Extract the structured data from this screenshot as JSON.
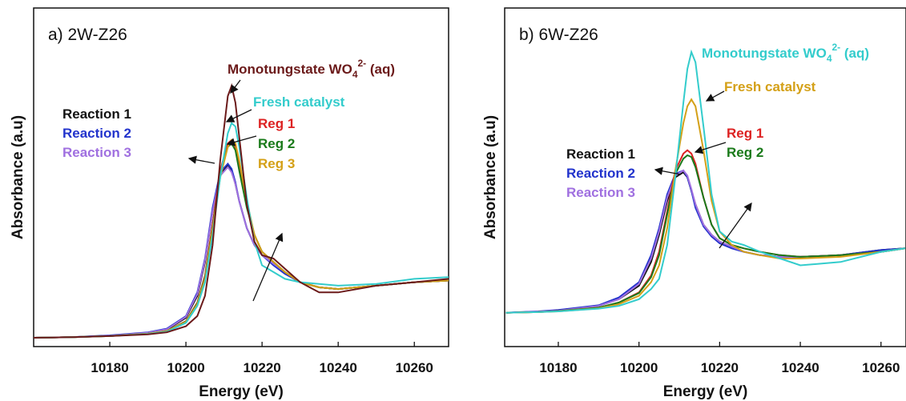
{
  "chart_data": [
    {
      "type": "line",
      "title": "a) 2W-Z26",
      "xlabel": "Energy (eV)",
      "ylabel": "Absorbance (a.u)",
      "xlim": [
        10160,
        10269
      ],
      "xticks": [
        10180,
        10200,
        10220,
        10240,
        10260
      ],
      "ylim": [
        0,
        1
      ],
      "x": [
        10160,
        10170,
        10180,
        10190,
        10195,
        10200,
        10203,
        10205,
        10207,
        10209,
        10211,
        10212,
        10213,
        10214,
        10216,
        10218,
        10220,
        10223,
        10226,
        10230,
        10235,
        10240,
        10250,
        10260,
        10269
      ],
      "series": [
        {
          "name": "Reaction 1",
          "color": "#111111",
          "values": [
            0.026,
            0.028,
            0.032,
            0.04,
            0.05,
            0.085,
            0.15,
            0.25,
            0.4,
            0.51,
            0.535,
            0.52,
            0.48,
            0.43,
            0.35,
            0.3,
            0.27,
            0.245,
            0.22,
            0.19,
            0.175,
            0.17,
            0.18,
            0.19,
            0.195
          ]
        },
        {
          "name": "Reaction 2",
          "color": "#2233cc",
          "values": [
            0.026,
            0.028,
            0.033,
            0.042,
            0.053,
            0.09,
            0.16,
            0.26,
            0.41,
            0.515,
            0.54,
            0.525,
            0.485,
            0.43,
            0.35,
            0.3,
            0.27,
            0.24,
            0.215,
            0.19,
            0.175,
            0.17,
            0.18,
            0.19,
            0.195
          ]
        },
        {
          "name": "Reaction 3",
          "color": "#a070e0",
          "values": [
            0.026,
            0.028,
            0.032,
            0.041,
            0.051,
            0.088,
            0.155,
            0.255,
            0.4,
            0.505,
            0.53,
            0.515,
            0.48,
            0.43,
            0.35,
            0.3,
            0.27,
            0.245,
            0.22,
            0.19,
            0.175,
            0.17,
            0.18,
            0.19,
            0.195
          ]
        },
        {
          "name": "Reg 1",
          "color": "#dd2222",
          "values": [
            0.026,
            0.028,
            0.031,
            0.038,
            0.046,
            0.075,
            0.13,
            0.21,
            0.36,
            0.52,
            0.6,
            0.61,
            0.59,
            0.53,
            0.42,
            0.33,
            0.28,
            0.25,
            0.22,
            0.19,
            0.175,
            0.17,
            0.18,
            0.19,
            0.195
          ]
        },
        {
          "name": "Reg 2",
          "color": "#1a7a1a",
          "values": [
            0.026,
            0.028,
            0.031,
            0.038,
            0.046,
            0.074,
            0.128,
            0.205,
            0.35,
            0.51,
            0.59,
            0.6,
            0.58,
            0.52,
            0.41,
            0.33,
            0.28,
            0.25,
            0.22,
            0.19,
            0.175,
            0.17,
            0.18,
            0.19,
            0.195
          ]
        },
        {
          "name": "Reg 3",
          "color": "#d4a017",
          "values": [
            0.026,
            0.028,
            0.031,
            0.038,
            0.046,
            0.073,
            0.125,
            0.2,
            0.345,
            0.5,
            0.59,
            0.61,
            0.6,
            0.55,
            0.43,
            0.33,
            0.28,
            0.25,
            0.22,
            0.19,
            0.175,
            0.17,
            0.18,
            0.19,
            0.195
          ]
        },
        {
          "name": "Fresh catalyst",
          "color": "#33cccc",
          "values": [
            0.026,
            0.028,
            0.031,
            0.037,
            0.044,
            0.07,
            0.12,
            0.19,
            0.33,
            0.5,
            0.63,
            0.66,
            0.65,
            0.59,
            0.44,
            0.31,
            0.24,
            0.22,
            0.2,
            0.19,
            0.185,
            0.18,
            0.185,
            0.2,
            0.205
          ]
        },
        {
          "name": "Monotungstate WO",
          "name_sub": "4",
          "name_sup": "2-",
          "name_after": " (aq)",
          "color": "#6b1a1a",
          "values": [
            0.026,
            0.028,
            0.031,
            0.036,
            0.042,
            0.06,
            0.09,
            0.15,
            0.3,
            0.55,
            0.74,
            0.77,
            0.72,
            0.62,
            0.42,
            0.31,
            0.27,
            0.26,
            0.23,
            0.19,
            0.16,
            0.16,
            0.18,
            0.19,
            0.2
          ]
        }
      ]
    },
    {
      "type": "line",
      "title": "b) 6W-Z26",
      "xlabel": "Energy (eV)",
      "ylabel": "Absorbance (a.u)",
      "xlim": [
        10166.7,
        10266.2
      ],
      "xticks": [
        10180,
        10200,
        10220,
        10240,
        10260
      ],
      "ylim": [
        0,
        1
      ],
      "x": [
        10167,
        10175,
        10180,
        10190,
        10195,
        10200,
        10203,
        10205,
        10207,
        10209,
        10211,
        10212,
        10213,
        10214,
        10216,
        10218,
        10220,
        10223,
        10226,
        10230,
        10235,
        10240,
        10250,
        10260,
        10266
      ],
      "series": [
        {
          "name": "Reaction 1",
          "color": "#111111",
          "values": [
            0.1,
            0.103,
            0.106,
            0.12,
            0.14,
            0.18,
            0.25,
            0.33,
            0.43,
            0.5,
            0.515,
            0.5,
            0.46,
            0.42,
            0.36,
            0.33,
            0.31,
            0.295,
            0.28,
            0.27,
            0.265,
            0.265,
            0.27,
            0.285,
            0.29
          ]
        },
        {
          "name": "Reaction 2",
          "color": "#2233cc",
          "values": [
            0.1,
            0.104,
            0.108,
            0.122,
            0.145,
            0.19,
            0.27,
            0.35,
            0.45,
            0.51,
            0.52,
            0.5,
            0.46,
            0.41,
            0.355,
            0.325,
            0.305,
            0.29,
            0.28,
            0.27,
            0.265,
            0.265,
            0.27,
            0.285,
            0.29
          ]
        },
        {
          "name": "Reaction 3",
          "color": "#a070e0",
          "values": [
            0.1,
            0.103,
            0.106,
            0.12,
            0.14,
            0.185,
            0.26,
            0.34,
            0.44,
            0.505,
            0.52,
            0.505,
            0.465,
            0.42,
            0.36,
            0.33,
            0.31,
            0.295,
            0.28,
            0.27,
            0.265,
            0.265,
            0.27,
            0.28,
            0.29
          ]
        },
        {
          "name": "Reg 1",
          "color": "#dd2222",
          "values": [
            0.1,
            0.102,
            0.105,
            0.115,
            0.13,
            0.16,
            0.21,
            0.28,
            0.4,
            0.52,
            0.57,
            0.58,
            0.57,
            0.54,
            0.44,
            0.36,
            0.32,
            0.3,
            0.29,
            0.28,
            0.27,
            0.265,
            0.27,
            0.28,
            0.29
          ]
        },
        {
          "name": "Reg 2",
          "color": "#1a7a1a",
          "values": [
            0.1,
            0.102,
            0.105,
            0.115,
            0.13,
            0.158,
            0.205,
            0.27,
            0.39,
            0.51,
            0.555,
            0.565,
            0.56,
            0.53,
            0.44,
            0.36,
            0.32,
            0.3,
            0.29,
            0.28,
            0.27,
            0.265,
            0.27,
            0.28,
            0.29
          ]
        },
        {
          "name": "Fresh catalyst",
          "color": "#d4a017",
          "values": [
            0.1,
            0.102,
            0.104,
            0.113,
            0.125,
            0.15,
            0.19,
            0.24,
            0.35,
            0.52,
            0.66,
            0.71,
            0.73,
            0.71,
            0.58,
            0.43,
            0.34,
            0.3,
            0.28,
            0.27,
            0.26,
            0.26,
            0.265,
            0.28,
            0.29
          ]
        },
        {
          "name": "Monotungstate WO",
          "name_sub": "4",
          "name_sup": "2-",
          "name_after": " (aq)",
          "color": "#33cccc",
          "values": [
            0.1,
            0.102,
            0.104,
            0.112,
            0.12,
            0.14,
            0.17,
            0.2,
            0.3,
            0.5,
            0.72,
            0.82,
            0.87,
            0.84,
            0.65,
            0.45,
            0.34,
            0.31,
            0.3,
            0.28,
            0.26,
            0.24,
            0.25,
            0.28,
            0.29
          ]
        }
      ]
    }
  ]
}
